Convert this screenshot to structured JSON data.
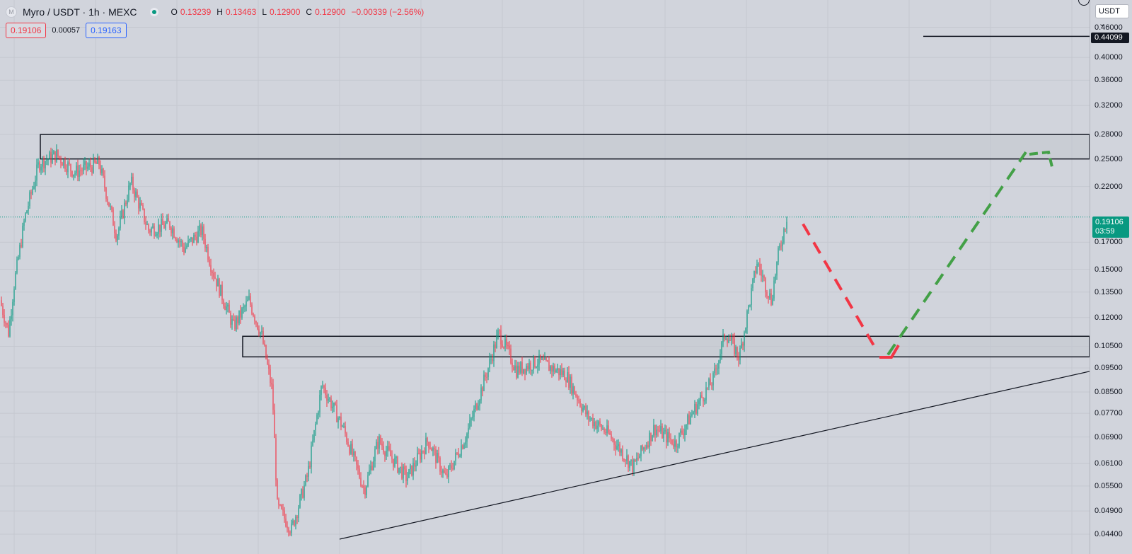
{
  "symbol": {
    "title": "Myro / USDT · 1h · MEXC",
    "logo_letter": "M",
    "ohlc": [
      {
        "key": "O",
        "value": "0.13239"
      },
      {
        "key": "H",
        "value": "0.13463"
      },
      {
        "key": "L",
        "value": "0.12900"
      },
      {
        "key": "C",
        "value": "0.12900"
      }
    ],
    "change": "−0.00339 (−2.56%)"
  },
  "quote": {
    "sell": "0.19106",
    "spread": "0.00057",
    "buy": "0.19163"
  },
  "currency_button": "USDT ⌄",
  "last_price": {
    "price": "0.19106",
    "countdown": "03:59"
  },
  "level_badge": "0.44099",
  "price_axis_labels": [
    "0.46000",
    "0.40000",
    "0.36000",
    "0.32000",
    "0.28000",
    "0.25000",
    "0.22000",
    "0.17000",
    "0.15000",
    "0.13500",
    "0.12000",
    "0.10500",
    "0.09500",
    "0.08500",
    "0.07700",
    "0.06900",
    "0.06100",
    "0.05500",
    "0.04900",
    "0.04400"
  ],
  "colors": {
    "background": "#d1d4dc",
    "up_candle": "#089981",
    "down_candle": "#f23645",
    "zone_fill": "#c3c6ce",
    "bearish_path": "#f23645",
    "bullish_path": "#43a047",
    "trendline": "#131722"
  },
  "chart_data": {
    "type": "candlestick",
    "price_scale": "log",
    "ylim": [
      0.043,
      0.46
    ],
    "last_price": 0.19106,
    "key_level": 0.44099,
    "zones": [
      {
        "low": 0.25,
        "high": 0.28
      },
      {
        "low": 0.1,
        "high": 0.11
      }
    ],
    "close_path": [
      {
        "t": 0,
        "p": 0.13
      },
      {
        "t": 12,
        "p": 0.112
      },
      {
        "t": 20,
        "p": 0.14
      },
      {
        "t": 35,
        "p": 0.19
      },
      {
        "t": 55,
        "p": 0.245
      },
      {
        "t": 80,
        "p": 0.255
      },
      {
        "t": 105,
        "p": 0.235
      },
      {
        "t": 140,
        "p": 0.245
      },
      {
        "t": 165,
        "p": 0.175
      },
      {
        "t": 185,
        "p": 0.225
      },
      {
        "t": 210,
        "p": 0.18
      },
      {
        "t": 240,
        "p": 0.185
      },
      {
        "t": 260,
        "p": 0.165
      },
      {
        "t": 285,
        "p": 0.18
      },
      {
        "t": 300,
        "p": 0.15
      },
      {
        "t": 330,
        "p": 0.115
      },
      {
        "t": 352,
        "p": 0.13
      },
      {
        "t": 370,
        "p": 0.11
      },
      {
        "t": 385,
        "p": 0.085
      },
      {
        "t": 392,
        "p": 0.05
      },
      {
        "t": 412,
        "p": 0.045
      },
      {
        "t": 435,
        "p": 0.058
      },
      {
        "t": 455,
        "p": 0.088
      },
      {
        "t": 485,
        "p": 0.072
      },
      {
        "t": 515,
        "p": 0.054
      },
      {
        "t": 535,
        "p": 0.068
      },
      {
        "t": 575,
        "p": 0.057
      },
      {
        "t": 605,
        "p": 0.068
      },
      {
        "t": 630,
        "p": 0.057
      },
      {
        "t": 660,
        "p": 0.07
      },
      {
        "t": 690,
        "p": 0.095
      },
      {
        "t": 705,
        "p": 0.112
      },
      {
        "t": 730,
        "p": 0.094
      },
      {
        "t": 760,
        "p": 0.098
      },
      {
        "t": 800,
        "p": 0.092
      },
      {
        "t": 830,
        "p": 0.076
      },
      {
        "t": 860,
        "p": 0.07
      },
      {
        "t": 895,
        "p": 0.06
      },
      {
        "t": 925,
        "p": 0.072
      },
      {
        "t": 955,
        "p": 0.067
      },
      {
        "t": 985,
        "p": 0.08
      },
      {
        "t": 1008,
        "p": 0.09
      },
      {
        "t": 1025,
        "p": 0.112
      },
      {
        "t": 1045,
        "p": 0.1
      },
      {
        "t": 1070,
        "p": 0.155
      },
      {
        "t": 1090,
        "p": 0.13
      },
      {
        "t": 1100,
        "p": 0.16
      },
      {
        "t": 1112,
        "p": 0.191
      }
    ],
    "trendline": [
      {
        "t": 480,
        "p": 0.043
      },
      {
        "t": 1540,
        "p": 0.0935
      }
    ],
    "projection_bearish": [
      {
        "t": 1135,
        "p": 0.185
      },
      {
        "t": 1240,
        "p": 0.1025
      }
    ],
    "projection_bullish": [
      {
        "t": 1255,
        "p": 0.101
      },
      {
        "t": 1450,
        "p": 0.258
      }
    ]
  }
}
